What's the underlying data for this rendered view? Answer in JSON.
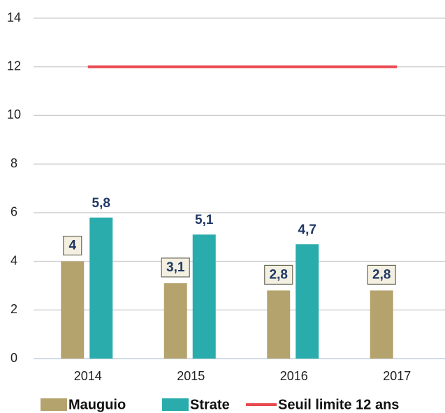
{
  "chart_data": {
    "type": "bar",
    "categories": [
      "2014",
      "2015",
      "2016",
      "2017"
    ],
    "series": [
      {
        "name": "Mauguio",
        "color": "#b5a36d",
        "values": [
          4,
          3.1,
          2.8,
          2.8
        ],
        "value_labels": [
          "4",
          "3,1",
          "2,8",
          "2,8"
        ]
      },
      {
        "name": "Strate",
        "color": "#2aacac",
        "values": [
          5.8,
          5.1,
          4.7,
          null
        ],
        "value_labels": [
          "5,8",
          "5,1",
          "4,7",
          null
        ]
      },
      {
        "name": "Seuil limite 12 ans",
        "color": "#e8494f",
        "type": "line",
        "values": [
          12,
          12,
          12,
          12
        ]
      }
    ],
    "ylim": [
      0,
      14
    ],
    "yticks": [
      0,
      2,
      4,
      6,
      8,
      10,
      12,
      14
    ],
    "grid": true,
    "legend": "bottom"
  }
}
